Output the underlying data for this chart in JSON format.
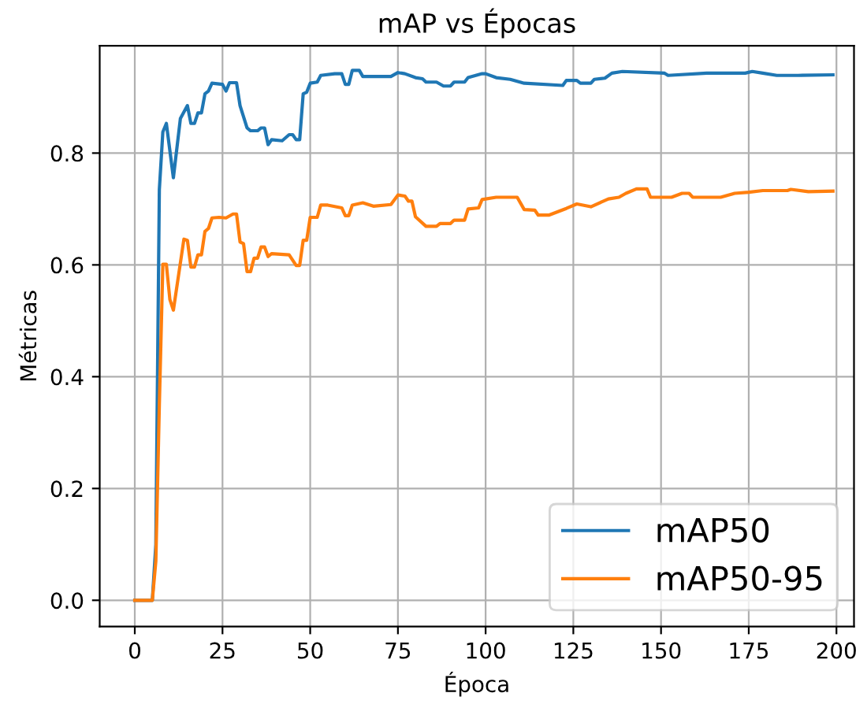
{
  "chart_data": {
    "type": "line",
    "title": "mAP vs Épocas",
    "xlabel": "Época",
    "ylabel": "Métricas",
    "xlim": [
      -10,
      205
    ],
    "ylim": [
      -0.047,
      0.992
    ],
    "xticks": [
      0,
      25,
      50,
      75,
      100,
      125,
      150,
      175,
      200
    ],
    "yticks": [
      {
        "value": 0,
        "label": "0.0"
      },
      0.2,
      0.4,
      0.6,
      0.8
    ],
    "grid": true,
    "legend": "bottom right",
    "series": [
      {
        "name": "mAP50",
        "color": "#1f77b4",
        "x": [
          0,
          5,
          6,
          7,
          8,
          9,
          11,
          13,
          15,
          16,
          17,
          18,
          19,
          20,
          21,
          22,
          25,
          26,
          27,
          29,
          30,
          32,
          33,
          35,
          36,
          37,
          38,
          39,
          42,
          44,
          45,
          46,
          47,
          48,
          49,
          50,
          52,
          53,
          57,
          59,
          60,
          61,
          62,
          64,
          65,
          73,
          75,
          77,
          80,
          82,
          83,
          86,
          88,
          90,
          91,
          94,
          95,
          99,
          100,
          103,
          107,
          111,
          122,
          123,
          126,
          127,
          130,
          131,
          134,
          136,
          139,
          151,
          152,
          163,
          174,
          176,
          179,
          183,
          189,
          199
        ],
        "values": [
          0,
          0,
          0.1,
          0.735,
          0.838,
          0.853,
          0.756,
          0.862,
          0.885,
          0.853,
          0.853,
          0.872,
          0.872,
          0.906,
          0.911,
          0.925,
          0.923,
          0.911,
          0.926,
          0.926,
          0.885,
          0.845,
          0.84,
          0.84,
          0.845,
          0.845,
          0.815,
          0.824,
          0.822,
          0.833,
          0.833,
          0.824,
          0.824,
          0.906,
          0.909,
          0.925,
          0.927,
          0.939,
          0.942,
          0.942,
          0.923,
          0.923,
          0.948,
          0.948,
          0.937,
          0.937,
          0.944,
          0.942,
          0.935,
          0.933,
          0.927,
          0.927,
          0.92,
          0.92,
          0.927,
          0.927,
          0.935,
          0.942,
          0.942,
          0.935,
          0.932,
          0.925,
          0.921,
          0.93,
          0.93,
          0.925,
          0.925,
          0.932,
          0.934,
          0.943,
          0.946,
          0.943,
          0.939,
          0.943,
          0.943,
          0.946,
          0.943,
          0.939,
          0.939,
          0.94
        ]
      },
      {
        "name": "mAP50-95",
        "color": "#ff7f0e",
        "x": [
          0,
          5,
          6,
          7,
          8,
          9,
          10,
          11,
          14,
          15,
          16,
          17,
          18,
          19,
          20,
          21,
          22,
          24,
          26,
          28,
          29,
          30,
          31,
          32,
          33,
          34,
          35,
          36,
          37,
          38,
          39,
          44,
          46,
          47,
          48,
          49,
          50,
          52,
          53,
          55,
          59,
          60,
          61,
          62,
          65,
          68,
          73,
          75,
          77,
          78,
          79,
          80,
          83,
          86,
          87,
          90,
          91,
          94,
          95,
          98,
          99,
          103,
          109,
          111,
          114,
          115,
          118,
          123,
          126,
          130,
          135,
          138,
          140,
          143,
          146,
          147,
          153,
          156,
          158,
          159,
          167,
          171,
          175,
          179,
          186,
          187,
          192,
          199
        ],
        "values": [
          0,
          0,
          0.07,
          0.35,
          0.601,
          0.601,
          0.538,
          0.519,
          0.646,
          0.644,
          0.596,
          0.596,
          0.618,
          0.618,
          0.66,
          0.665,
          0.684,
          0.685,
          0.684,
          0.691,
          0.691,
          0.641,
          0.638,
          0.588,
          0.588,
          0.612,
          0.612,
          0.632,
          0.632,
          0.615,
          0.62,
          0.618,
          0.599,
          0.599,
          0.644,
          0.644,
          0.685,
          0.685,
          0.707,
          0.707,
          0.702,
          0.688,
          0.688,
          0.707,
          0.711,
          0.705,
          0.708,
          0.725,
          0.723,
          0.714,
          0.714,
          0.686,
          0.669,
          0.669,
          0.674,
          0.674,
          0.68,
          0.68,
          0.7,
          0.702,
          0.717,
          0.721,
          0.721,
          0.699,
          0.698,
          0.689,
          0.689,
          0.701,
          0.709,
          0.704,
          0.718,
          0.721,
          0.728,
          0.736,
          0.736,
          0.721,
          0.721,
          0.728,
          0.728,
          0.721,
          0.721,
          0.728,
          0.73,
          0.733,
          0.733,
          0.735,
          0.731,
          0.732
        ]
      }
    ]
  }
}
